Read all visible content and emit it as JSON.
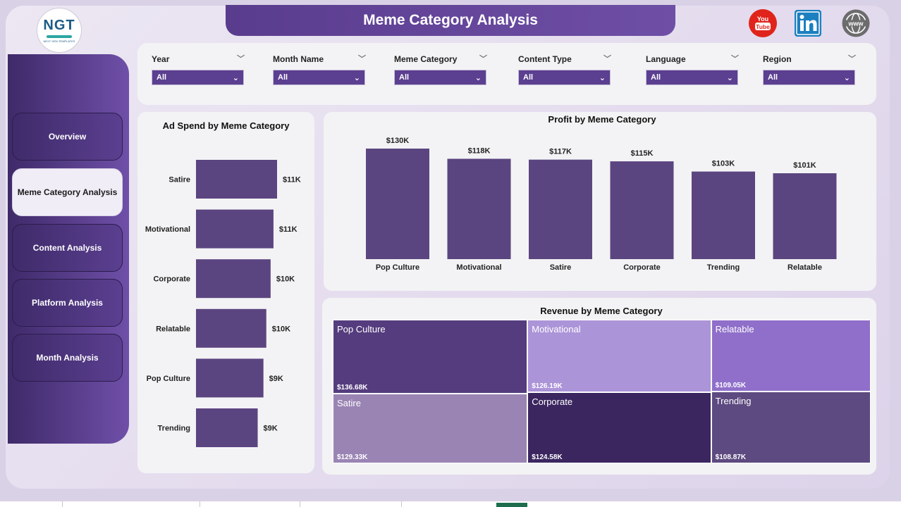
{
  "header": {
    "title": "Meme Category Analysis"
  },
  "logo": {
    "text": "NGT",
    "subtext": "NEXT GEN TEMPLATES",
    "icon": "ngt-logo"
  },
  "social": [
    {
      "name": "youtube-icon",
      "label": "You Tube",
      "color": "#e0241b"
    },
    {
      "name": "linkedin-icon",
      "label": "in",
      "color": "#1c7fc0"
    },
    {
      "name": "globe-icon",
      "label": "www",
      "color": "#6c6c6c"
    }
  ],
  "nav": [
    {
      "label": "Overview",
      "active": false
    },
    {
      "label": "Meme Category Analysis",
      "active": true
    },
    {
      "label": "Content Analysis",
      "active": false
    },
    {
      "label": "Platform Analysis",
      "active": false
    },
    {
      "label": "Month Analysis",
      "active": false
    }
  ],
  "filters": [
    {
      "label": "Year",
      "value": "All"
    },
    {
      "label": "Month Name",
      "value": "All"
    },
    {
      "label": "Meme Category",
      "value": "All"
    },
    {
      "label": "Content Type",
      "value": "All"
    },
    {
      "label": "Language",
      "value": "All"
    },
    {
      "label": "Region",
      "value": "All"
    }
  ],
  "colors": {
    "accent": "#5b3f90",
    "bar": "#5b4580"
  },
  "chart_data": [
    {
      "type": "bar",
      "orientation": "horizontal",
      "title": "Ad Spend by Meme Category",
      "categories": [
        "Satire",
        "Motivational",
        "Corporate",
        "Relatable",
        "Pop Culture",
        "Trending"
      ],
      "values": [
        11.3,
        10.8,
        10.4,
        9.8,
        9.4,
        8.6
      ],
      "labels": [
        "$11K",
        "$11K",
        "$10K",
        "$10K",
        "$9K",
        "$9K"
      ],
      "xlim": [
        0,
        12
      ]
    },
    {
      "type": "bar",
      "title": "Profit by Meme Category",
      "categories": [
        "Pop Culture",
        "Motivational",
        "Satire",
        "Corporate",
        "Trending",
        "Relatable"
      ],
      "values": [
        130,
        118,
        117,
        115,
        103,
        101
      ],
      "labels": [
        "$130K",
        "$118K",
        "$117K",
        "$115K",
        "$103K",
        "$101K"
      ],
      "ylim": [
        0,
        130
      ]
    },
    {
      "type": "treemap",
      "title": "Revenue by Meme Category",
      "items": [
        {
          "name": "Pop Culture",
          "value": 136.68,
          "label": "$136.68K",
          "color": "#553c7e"
        },
        {
          "name": "Satire",
          "value": 129.33,
          "label": "$129.33K",
          "color": "#9a84b4"
        },
        {
          "name": "Motivational",
          "value": 126.19,
          "label": "$126.19K",
          "color": "#ac94d8"
        },
        {
          "name": "Corporate",
          "value": 124.58,
          "label": "$124.58K",
          "color": "#3b2660"
        },
        {
          "name": "Relatable",
          "value": 109.05,
          "label": "$109.05K",
          "color": "#8f6fca"
        },
        {
          "name": "Trending",
          "value": 108.87,
          "label": "$108.87K",
          "color": "#5d4a80"
        }
      ]
    }
  ]
}
